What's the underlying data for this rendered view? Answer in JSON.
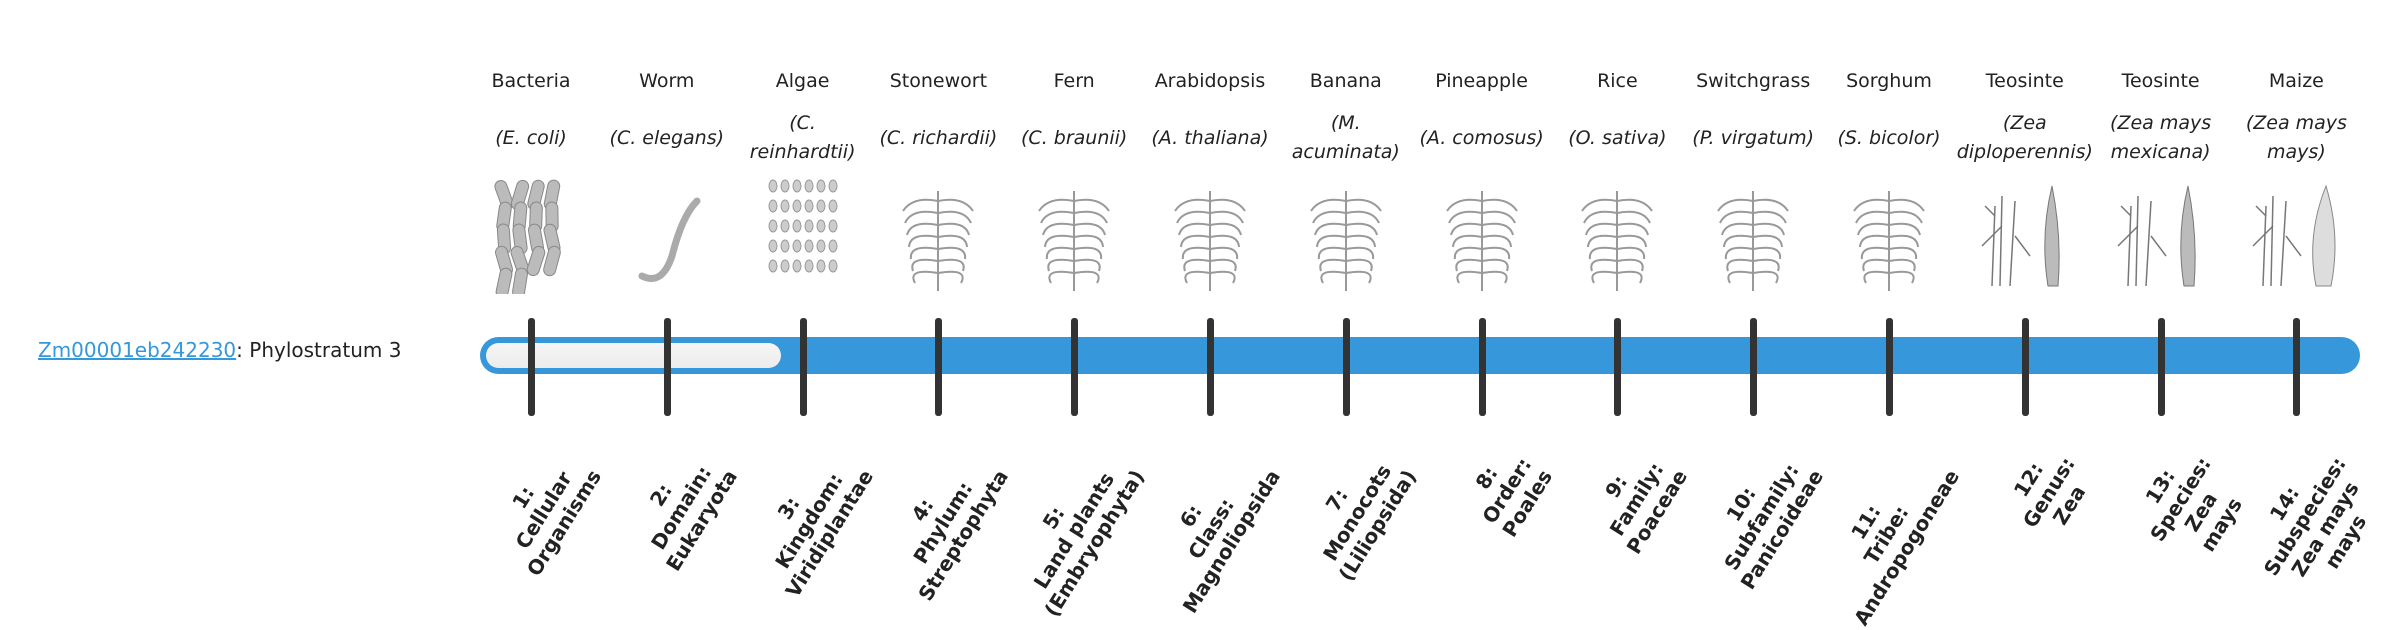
{
  "gene": {
    "id": "Zm00001eb242230",
    "suffix": ": Phylostratum 3",
    "phylostratum": 3
  },
  "colors": {
    "bar": "#3797db",
    "tick": "#333333",
    "link": "#3498db"
  },
  "organisms": [
    {
      "common": "Bacteria",
      "scientific": "(E. coli)",
      "icon": "bacteria-image"
    },
    {
      "common": "Worm",
      "scientific": "(C. elegans)",
      "icon": "worm-image"
    },
    {
      "common": "Algae",
      "scientific": "(C. reinhardtii)",
      "icon": "algae-image"
    },
    {
      "common": "Stonewort",
      "scientific": "(C. richardii)",
      "icon": "stonewort-image"
    },
    {
      "common": "Fern",
      "scientific": "(C. braunii)",
      "icon": "fern-image"
    },
    {
      "common": "Arabidopsis",
      "scientific": "(A. thaliana)",
      "icon": "arabidopsis-image"
    },
    {
      "common": "Banana",
      "scientific": "(M. acuminata)",
      "icon": "banana-image"
    },
    {
      "common": "Pineapple",
      "scientific": "(A. comosus)",
      "icon": "pineapple-image"
    },
    {
      "common": "Rice",
      "scientific": "(O. sativa)",
      "icon": "rice-image"
    },
    {
      "common": "Switchgrass",
      "scientific": "(P. virgatum)",
      "icon": "switchgrass-image"
    },
    {
      "common": "Sorghum",
      "scientific": "(S. bicolor)",
      "icon": "sorghum-image"
    },
    {
      "common": "Teosinte",
      "scientific": "(Zea diploperennis)",
      "icon": "teosinte-image"
    },
    {
      "common": "Teosinte",
      "scientific": "(Zea mays mexicana)",
      "icon": "teosinte-image"
    },
    {
      "common": "Maize",
      "scientific": "(Zea mays mays)",
      "icon": "maize-image"
    }
  ],
  "strata": [
    "1:\nCellular\nOrganisms",
    "2:\nDomain:\nEukaryota",
    "3:\nKingdom:\nViridiplantae",
    "4:\nPhylum:\nStreptophyta",
    "5:\nLand plants\n(Embryophyta)",
    "6:\nClass:\nMagnoliopsida",
    "7:\nMonocots\n(Liliopsida)",
    "8:\nOrder:\nPoales",
    "9:\nFamily:\nPoaceae",
    "10:\nSubfamily:\nPanicoideae",
    "11:\nTribe:\nAndropogoneae",
    "12:\nGenus:\nZea",
    "13:\nSpecies:\nZea\nmays",
    "14:\nSubspecies:\nZea mays\nmays"
  ]
}
